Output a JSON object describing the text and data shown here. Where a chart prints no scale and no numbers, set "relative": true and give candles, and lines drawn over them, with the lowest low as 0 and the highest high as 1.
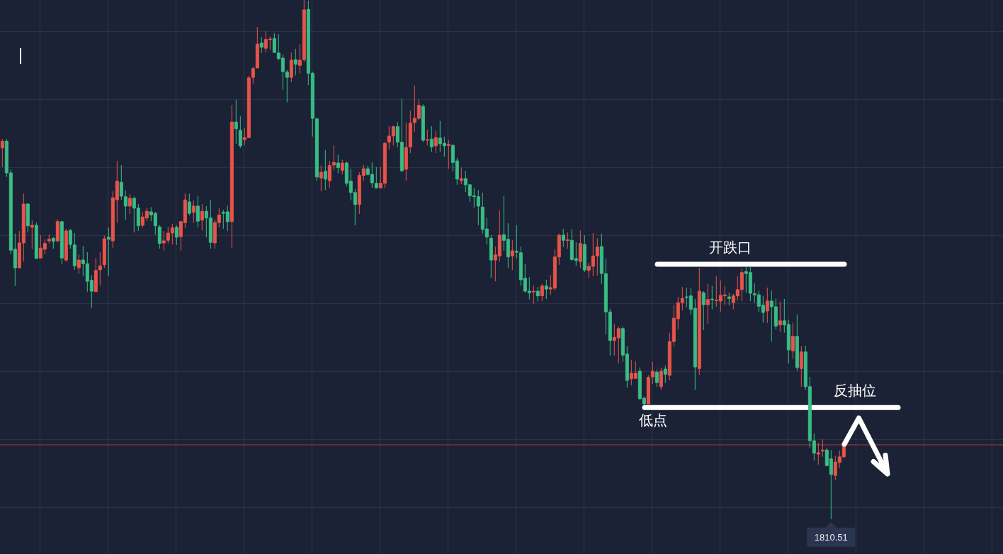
{
  "chart_data": {
    "type": "candlestick",
    "relative": true,
    "grid": true,
    "categories": [
      null,
      null,
      null,
      null,
      null,
      null,
      null,
      null,
      null,
      null,
      null,
      null,
      null,
      null,
      null,
      null,
      null,
      null,
      null,
      null,
      null,
      null,
      null,
      null,
      null,
      null,
      null,
      null,
      null,
      null,
      null,
      null,
      null,
      null,
      null,
      null,
      null,
      null,
      null,
      null,
      null,
      null,
      null,
      null,
      null,
      null,
      null,
      null,
      null,
      null,
      null,
      null,
      null,
      null,
      null,
      null,
      null,
      null,
      null,
      null,
      null,
      null,
      null,
      null,
      null,
      null,
      null,
      null,
      null,
      null,
      null,
      null,
      null,
      null,
      null,
      null,
      null,
      null,
      null,
      null,
      null,
      null,
      null,
      null,
      null,
      null,
      null,
      null,
      null,
      null,
      null,
      null,
      null,
      null,
      null,
      null,
      null,
      null,
      null,
      null,
      null,
      null,
      null,
      null,
      null,
      null,
      null,
      null,
      null,
      null,
      null,
      null,
      null,
      null,
      null,
      null,
      null,
      null,
      null,
      null,
      null,
      null,
      null,
      null,
      null,
      null,
      null,
      null,
      null,
      null,
      null,
      null,
      null,
      null,
      null,
      null,
      null,
      null,
      null,
      null,
      null,
      null,
      null,
      null,
      null,
      null,
      null,
      null,
      null,
      null,
      null,
      null,
      null,
      null,
      null,
      null,
      null,
      null,
      null,
      null,
      null,
      null,
      null,
      null,
      null,
      null,
      null,
      null,
      null,
      null,
      null,
      null,
      null,
      null,
      null,
      null,
      null,
      null,
      null,
      null,
      null,
      null,
      null,
      null,
      null,
      null,
      null,
      null,
      null,
      null,
      null,
      null,
      null,
      null,
      null,
      null,
      null,
      null,
      null
    ],
    "ohlc": [
      [
        0.715,
        0.732,
        0.678,
        0.728
      ],
      [
        0.728,
        0.732,
        0.659,
        0.667
      ],
      [
        0.667,
        0.674,
        0.51,
        0.518
      ],
      [
        0.52,
        0.55,
        0.449,
        0.484
      ],
      [
        0.484,
        0.555,
        0.483,
        0.532
      ],
      [
        0.532,
        0.627,
        0.496,
        0.607
      ],
      [
        0.607,
        0.608,
        0.552,
        0.565
      ],
      [
        0.562,
        0.576,
        0.52,
        0.566
      ],
      [
        0.566,
        0.571,
        0.502,
        0.502
      ],
      [
        0.503,
        0.547,
        0.503,
        0.522
      ],
      [
        0.52,
        0.539,
        0.51,
        0.531
      ],
      [
        0.536,
        0.548,
        0.531,
        0.539
      ],
      [
        0.541,
        0.543,
        0.521,
        0.535
      ],
      [
        0.536,
        0.577,
        0.533,
        0.573
      ],
      [
        0.573,
        0.574,
        0.491,
        0.503
      ],
      [
        0.499,
        0.559,
        0.496,
        0.555
      ],
      [
        0.556,
        0.559,
        0.521,
        0.529
      ],
      [
        0.528,
        0.551,
        0.48,
        0.488
      ],
      [
        0.484,
        0.51,
        0.472,
        0.499
      ],
      [
        0.499,
        0.526,
        0.468,
        0.492
      ],
      [
        0.492,
        0.514,
        0.438,
        0.458
      ],
      [
        0.46,
        0.47,
        0.406,
        0.439
      ],
      [
        0.438,
        0.503,
        0.438,
        0.479
      ],
      [
        0.48,
        0.514,
        0.45,
        0.488
      ],
      [
        0.49,
        0.546,
        0.484,
        0.54
      ],
      [
        0.543,
        0.562,
        0.468,
        0.539
      ],
      [
        0.536,
        0.632,
        0.522,
        0.619
      ],
      [
        0.615,
        0.69,
        0.571,
        0.651
      ],
      [
        0.649,
        0.682,
        0.615,
        0.622
      ],
      [
        0.621,
        0.633,
        0.577,
        0.603
      ],
      [
        0.603,
        0.626,
        0.588,
        0.618
      ],
      [
        0.618,
        0.621,
        0.552,
        0.599
      ],
      [
        0.599,
        0.607,
        0.555,
        0.565
      ],
      [
        0.566,
        0.592,
        0.561,
        0.582
      ],
      [
        0.58,
        0.599,
        0.574,
        0.593
      ],
      [
        0.592,
        0.601,
        0.574,
        0.586
      ],
      [
        0.589,
        0.592,
        0.548,
        0.565
      ],
      [
        0.563,
        0.566,
        0.521,
        0.531
      ],
      [
        0.532,
        0.555,
        0.517,
        0.536
      ],
      [
        0.537,
        0.563,
        0.531,
        0.551
      ],
      [
        0.551,
        0.569,
        0.529,
        0.561
      ],
      [
        0.562,
        0.566,
        0.528,
        0.543
      ],
      [
        0.544,
        0.574,
        0.517,
        0.573
      ],
      [
        0.571,
        0.627,
        0.561,
        0.615
      ],
      [
        0.611,
        0.627,
        0.585,
        0.589
      ],
      [
        0.591,
        0.614,
        0.571,
        0.603
      ],
      [
        0.603,
        0.623,
        0.562,
        0.574
      ],
      [
        0.576,
        0.607,
        0.556,
        0.593
      ],
      [
        0.593,
        0.603,
        0.543,
        0.58
      ],
      [
        0.58,
        0.615,
        0.521,
        0.533
      ],
      [
        0.532,
        0.577,
        0.521,
        0.571
      ],
      [
        0.571,
        0.599,
        0.562,
        0.586
      ],
      [
        0.591,
        0.596,
        0.559,
        0.589
      ],
      [
        0.592,
        0.604,
        0.555,
        0.573
      ],
      [
        0.573,
        0.798,
        0.522,
        0.765
      ],
      [
        0.765,
        0.808,
        0.723,
        0.752
      ],
      [
        0.749,
        0.776,
        0.715,
        0.719
      ],
      [
        0.731,
        0.754,
        0.72,
        0.735
      ],
      [
        0.735,
        0.854,
        0.734,
        0.85
      ],
      [
        0.851,
        0.872,
        0.839,
        0.868
      ],
      [
        0.869,
        0.948,
        0.869,
        0.915
      ],
      [
        0.917,
        0.929,
        0.898,
        0.909
      ],
      [
        0.907,
        0.94,
        0.899,
        0.924
      ],
      [
        0.924,
        0.93,
        0.904,
        0.925
      ],
      [
        0.926,
        0.936,
        0.898,
        0.899
      ],
      [
        0.898,
        0.934,
        0.884,
        0.887
      ],
      [
        0.888,
        0.895,
        0.827,
        0.862
      ],
      [
        0.861,
        0.865,
        0.803,
        0.851
      ],
      [
        0.851,
        0.899,
        0.842,
        0.884
      ],
      [
        0.885,
        0.906,
        0.855,
        0.876
      ],
      [
        0.874,
        0.915,
        0.859,
        0.884
      ],
      [
        0.885,
        1,
        0.881,
        0.981
      ],
      [
        0.982,
        0.999,
        0.836,
        0.859
      ],
      [
        0.859,
        0.862,
        0.737,
        0.772
      ],
      [
        0.771,
        0.773,
        0.651,
        0.659
      ],
      [
        0.657,
        0.681,
        0.632,
        0.668
      ],
      [
        0.67,
        0.711,
        0.634,
        0.655
      ],
      [
        0.652,
        0.69,
        0.638,
        0.681
      ],
      [
        0.682,
        0.72,
        0.672,
        0.687
      ],
      [
        0.686,
        0.702,
        0.666,
        0.677
      ],
      [
        0.672,
        0.692,
        0.664,
        0.686
      ],
      [
        0.686,
        0.689,
        0.641,
        0.647
      ],
      [
        0.651,
        0.675,
        0.614,
        0.629
      ],
      [
        0.629,
        0.636,
        0.566,
        0.606
      ],
      [
        0.606,
        0.668,
        0.588,
        0.662
      ],
      [
        0.662,
        0.682,
        0.652,
        0.675
      ],
      [
        0.675,
        0.681,
        0.662,
        0.664
      ],
      [
        0.664,
        0.687,
        0.638,
        0.648
      ],
      [
        0.647,
        0.678,
        0.637,
        0.638
      ],
      [
        0.638,
        0.678,
        0.638,
        0.647
      ],
      [
        0.647,
        0.727,
        0.638,
        0.724
      ],
      [
        0.726,
        0.757,
        0.712,
        0.738
      ],
      [
        0.738,
        0.758,
        0.72,
        0.756
      ],
      [
        0.756,
        0.765,
        0.716,
        0.726
      ],
      [
        0.726,
        0.81,
        0.668,
        0.671
      ],
      [
        0.674,
        0.764,
        0.652,
        0.716
      ],
      [
        0.717,
        0.787,
        0.705,
        0.763
      ],
      [
        0.764,
        0.835,
        0.746,
        0.772
      ],
      [
        0.772,
        0.809,
        0.769,
        0.797
      ],
      [
        0.795,
        0.799,
        0.726,
        0.73
      ],
      [
        0.73,
        0.75,
        0.72,
        0.731
      ],
      [
        0.732,
        0.757,
        0.707,
        0.717
      ],
      [
        0.719,
        0.748,
        0.705,
        0.735
      ],
      [
        0.734,
        0.767,
        0.707,
        0.723
      ],
      [
        0.724,
        0.737,
        0.698,
        0.719
      ],
      [
        0.72,
        0.731,
        0.675,
        0.722
      ],
      [
        0.72,
        0.722,
        0.67,
        0.687
      ],
      [
        0.69,
        0.696,
        0.644,
        0.655
      ],
      [
        0.652,
        0.677,
        0.645,
        0.656
      ],
      [
        0.656,
        0.671,
        0.63,
        0.644
      ],
      [
        0.644,
        0.645,
        0.611,
        0.623
      ],
      [
        0.623,
        0.638,
        0.6,
        0.621
      ],
      [
        0.621,
        0.634,
        0.566,
        0.603
      ],
      [
        0.601,
        0.629,
        0.55,
        0.558
      ],
      [
        0.559,
        0.58,
        0.529,
        0.543
      ],
      [
        0.541,
        0.547,
        0.465,
        0.499
      ],
      [
        0.499,
        0.525,
        0.458,
        0.509
      ],
      [
        0.507,
        0.595,
        0.496,
        0.547
      ],
      [
        0.548,
        0.622,
        0.517,
        0.537
      ],
      [
        0.539,
        0.57,
        0.484,
        0.505
      ],
      [
        0.507,
        0.537,
        0.48,
        0.517
      ],
      [
        0.516,
        0.566,
        0.502,
        0.514
      ],
      [
        0.513,
        0.525,
        0.45,
        0.461
      ],
      [
        0.464,
        0.491,
        0.436,
        0.439
      ],
      [
        0.439,
        0.466,
        0.423,
        0.436
      ],
      [
        0.438,
        0.45,
        0.415,
        0.439
      ],
      [
        0.439,
        0.447,
        0.419,
        0.43
      ],
      [
        0.43,
        0.453,
        0.42,
        0.449
      ],
      [
        0.449,
        0.461,
        0.424,
        0.443
      ],
      [
        0.443,
        0.47,
        0.432,
        0.446
      ],
      [
        0.445,
        0.52,
        0.44,
        0.505
      ],
      [
        0.505,
        0.55,
        0.49,
        0.547
      ],
      [
        0.547,
        0.559,
        0.524,
        0.537
      ],
      [
        0.537,
        0.552,
        0.521,
        0.538
      ],
      [
        0.537,
        0.559,
        0.498,
        0.5
      ],
      [
        0.502,
        0.533,
        0.488,
        0.498
      ],
      [
        0.496,
        0.556,
        0.484,
        0.531
      ],
      [
        0.529,
        0.547,
        0.476,
        0.48
      ],
      [
        0.479,
        0.494,
        0.464,
        0.487
      ],
      [
        0.487,
        0.551,
        0.468,
        0.507
      ],
      [
        0.507,
        0.541,
        0.469,
        0.524
      ],
      [
        0.525,
        0.55,
        0.453,
        0.473
      ],
      [
        0.473,
        0.502,
        0.356,
        0.399
      ],
      [
        0.399,
        0.405,
        0.315,
        0.344
      ],
      [
        0.344,
        0.376,
        0.315,
        0.35
      ],
      [
        0.349,
        0.371,
        0.3,
        0.367
      ],
      [
        0.367,
        0.371,
        0.303,
        0.316
      ],
      [
        0.318,
        0.333,
        0.253,
        0.267
      ],
      [
        0.27,
        0.307,
        0.258,
        0.281
      ],
      [
        0.271,
        0.304,
        0.271,
        0.281
      ],
      [
        0.285,
        0.292,
        0.229,
        0.232
      ],
      [
        0.233,
        0.236,
        0.219,
        0.222
      ],
      [
        0.222,
        0.277,
        0.221,
        0.273
      ],
      [
        0.274,
        0.303,
        0.26,
        0.285
      ],
      [
        0.283,
        0.288,
        0.255,
        0.263
      ],
      [
        0.255,
        0.292,
        0.249,
        0.285
      ],
      [
        0.289,
        0.296,
        0.262,
        0.279
      ],
      [
        0.277,
        0.359,
        0.267,
        0.342
      ],
      [
        0.342,
        0.413,
        0.333,
        0.387
      ],
      [
        0.386,
        0.428,
        0.365,
        0.417
      ],
      [
        0.417,
        0.447,
        0.402,
        0.425
      ],
      [
        0.428,
        0.446,
        0.408,
        0.427
      ],
      [
        0.43,
        0.446,
        0.393,
        0.404
      ],
      [
        0.406,
        0.424,
        0.249,
        0.293
      ],
      [
        0.29,
        0.484,
        0.278,
        0.439
      ],
      [
        0.436,
        0.439,
        0.364,
        0.413
      ],
      [
        0.413,
        0.453,
        0.376,
        0.423
      ],
      [
        0.424,
        0.449,
        0.404,
        0.423
      ],
      [
        0.421,
        0.468,
        0.409,
        0.422
      ],
      [
        0.42,
        0.46,
        0.399,
        0.431
      ],
      [
        0.43,
        0.449,
        0.412,
        0.432
      ],
      [
        0.428,
        0.436,
        0.412,
        0.425
      ],
      [
        0.417,
        0.434,
        0.404,
        0.43
      ],
      [
        0.43,
        0.468,
        0.421,
        0.442
      ],
      [
        0.442,
        0.483,
        0.42,
        0.475
      ],
      [
        0.477,
        0.487,
        0.436,
        0.473
      ],
      [
        0.475,
        0.487,
        0.42,
        0.435
      ],
      [
        0.434,
        0.454,
        0.417,
        0.432
      ],
      [
        0.432,
        0.44,
        0.399,
        0.41
      ],
      [
        0.412,
        0.43,
        0.378,
        0.398
      ],
      [
        0.401,
        0.446,
        0.378,
        0.42
      ],
      [
        0.42,
        0.44,
        0.342,
        0.409
      ],
      [
        0.409,
        0.425,
        0.365,
        0.372
      ],
      [
        0.374,
        0.419,
        0.361,
        0.382
      ],
      [
        0.382,
        0.424,
        0.359,
        0.374
      ],
      [
        0.375,
        0.384,
        0.3,
        0.326
      ],
      [
        0.324,
        0.378,
        0.309,
        0.352
      ],
      [
        0.352,
        0.394,
        0.286,
        0.292
      ],
      [
        0.29,
        0.333,
        0.255,
        0.322
      ],
      [
        0.322,
        0.334,
        0.249,
        0.255
      ],
      [
        0.255,
        0.274,
        0.137,
        0.151
      ],
      [
        0.151,
        0.165,
        0.113,
        0.127
      ],
      [
        0.125,
        0.147,
        0.105,
        0.128
      ],
      [
        0.131,
        0.154,
        0.12,
        0.133
      ],
      [
        0.133,
        0.137,
        0.102,
        0.103
      ],
      [
        0.116,
        0.133,
        0,
        0.086
      ],
      [
        0.084,
        0.122,
        0.075,
        0.11
      ],
      [
        0.109,
        0.132,
        0.099,
        0.12
      ],
      [
        0.12,
        0.147,
        0.117,
        0.143
      ]
    ],
    "colors": [
      "#e8544a",
      "#39bd85",
      "#39bd85",
      "#39bd85",
      "#e8544a",
      "#e8544a",
      "#39bd85",
      "#e8544a",
      "#39bd85",
      "#e8544a",
      "#e8544a",
      "#e8544a",
      "#39bd85",
      "#e8544a",
      "#39bd85",
      "#e8544a",
      "#39bd85",
      "#39bd85",
      "#e8544a",
      "#39bd85",
      "#39bd85",
      "#39bd85",
      "#e8544a",
      "#e8544a",
      "#e8544a",
      "#39bd85",
      "#e8544a",
      "#e8544a",
      "#39bd85",
      "#39bd85",
      "#e8544a",
      "#39bd85",
      "#39bd85",
      "#e8544a",
      "#e8544a",
      "#39bd85",
      "#39bd85",
      "#39bd85",
      "#e8544a",
      "#e8544a",
      "#e8544a",
      "#39bd85",
      "#e8544a",
      "#e8544a",
      "#39bd85",
      "#e8544a",
      "#39bd85",
      "#e8544a",
      "#39bd85",
      "#39bd85",
      "#e8544a",
      "#e8544a",
      "#39bd85",
      "#39bd85",
      "#e8544a",
      "#39bd85",
      "#39bd85",
      "#e8544a",
      "#e8544a",
      "#e8544a",
      "#e8544a",
      "#39bd85",
      "#e8544a",
      "#e8544a",
      "#39bd85",
      "#39bd85",
      "#39bd85",
      "#39bd85",
      "#e8544a",
      "#39bd85",
      "#e8544a",
      "#e8544a",
      "#39bd85",
      "#39bd85",
      "#39bd85",
      "#e8544a",
      "#39bd85",
      "#e8544a",
      "#e8544a",
      "#39bd85",
      "#e8544a",
      "#39bd85",
      "#39bd85",
      "#39bd85",
      "#e8544a",
      "#e8544a",
      "#39bd85",
      "#39bd85",
      "#39bd85",
      "#e8544a",
      "#e8544a",
      "#e8544a",
      "#e8544a",
      "#39bd85",
      "#39bd85",
      "#e8544a",
      "#e8544a",
      "#e8544a",
      "#e8544a",
      "#39bd85",
      "#e8544a",
      "#39bd85",
      "#e8544a",
      "#39bd85",
      "#39bd85",
      "#e8544a",
      "#39bd85",
      "#39bd85",
      "#e8544a",
      "#39bd85",
      "#39bd85",
      "#39bd85",
      "#39bd85",
      "#39bd85",
      "#39bd85",
      "#39bd85",
      "#e8544a",
      "#e8544a",
      "#39bd85",
      "#39bd85",
      "#e8544a",
      "#39bd85",
      "#39bd85",
      "#39bd85",
      "#39bd85",
      "#e8544a",
      "#39bd85",
      "#e8544a",
      "#39bd85",
      "#e8544a",
      "#e8544a",
      "#e8544a",
      "#39bd85",
      "#e8544a",
      "#39bd85",
      "#39bd85",
      "#e8544a",
      "#39bd85",
      "#e8544a",
      "#e8544a",
      "#e8544a",
      "#39bd85",
      "#39bd85",
      "#39bd85",
      "#e8544a",
      "#e8544a",
      "#39bd85",
      "#39bd85",
      "#e8544a",
      "#e8544a",
      "#39bd85",
      "#39bd85",
      "#e8544a",
      "#e8544a",
      "#39bd85",
      "#e8544a",
      "#39bd85",
      "#e8544a",
      "#e8544a",
      "#e8544a",
      "#e8544a",
      "#39bd85",
      "#39bd85",
      "#39bd85",
      "#e8544a",
      "#39bd85",
      "#e8544a",
      "#39bd85",
      "#e8544a",
      "#e8544a",
      "#e8544a",
      "#39bd85",
      "#e8544a",
      "#e8544a",
      "#e8544a",
      "#39bd85",
      "#39bd85",
      "#39bd85",
      "#39bd85",
      "#39bd85",
      "#e8544a",
      "#39bd85",
      "#39bd85",
      "#e8544a",
      "#39bd85",
      "#39bd85",
      "#e8544a",
      "#39bd85",
      "#e8544a",
      "#39bd85",
      "#39bd85",
      "#39bd85",
      "#e8544a",
      "#e8544a",
      "#39bd85",
      "#39bd85",
      "#e8544a",
      "#e8544a",
      "#e8544a"
    ],
    "ref_lines": [
      {
        "axis": "y",
        "value": 0.491,
        "label": "开跌口",
        "color": "#ffffff"
      },
      {
        "axis": "y",
        "value": 0.215,
        "label": "反抽位",
        "color": "#ffffff"
      },
      {
        "axis": "y",
        "value": 0.143,
        "color": "#a8383a"
      }
    ],
    "annotations": [
      {
        "text": "低点",
        "y": 0.219
      },
      {
        "text": "1810.51",
        "y": 0
      }
    ]
  }
}
